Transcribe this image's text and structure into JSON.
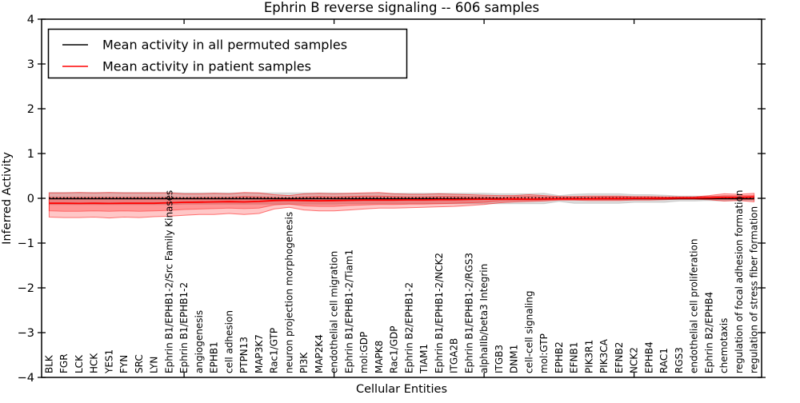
{
  "title": "Ephrin B reverse signaling -- 606 samples",
  "axes": {
    "xlabel": "Cellular Entities",
    "ylabel": "Inferred Activity",
    "yticks": [
      4,
      3,
      2,
      1,
      0,
      -1,
      -2,
      -3,
      -4
    ],
    "ylim": [
      -4,
      4
    ]
  },
  "legend": [
    {
      "label": "Mean activity in all permuted samples",
      "color": "#000000"
    },
    {
      "label": "Mean activity in patient samples",
      "color": "#ff0000"
    }
  ],
  "colors": {
    "permuted_line": "#000000",
    "patient_line": "#ff0000",
    "patient_band": "#ff0000",
    "permuted_band": "#b0b0b0",
    "frame": "#000000"
  },
  "chart_data": {
    "type": "line",
    "title": "Ephrin B reverse signaling -- 606 samples",
    "xlabel": "Cellular Entities",
    "ylabel": "Inferred Activity",
    "ylim": [
      -4,
      4
    ],
    "grid": false,
    "legend_position": "upper left",
    "x_major_tick_indices": [
      9,
      19,
      29,
      39
    ],
    "categories": [
      "BLK",
      "FGR",
      "LCK",
      "HCK",
      "YES1",
      "FYN",
      "SRC",
      "LYN",
      "Ephrin B1/EPHB1-2/Src Family Kinases",
      "Ephrin B1/EPHB1-2",
      "angiogenesis",
      "EPHB1",
      "cell adhesion",
      "PTPN13",
      "MAP3K7",
      "Rac1/GTP",
      "neuron projection morphogenesis",
      "PI3K",
      "MAP2K4",
      "endothelial cell migration",
      "Ephrin B1/EPHB1-2/Tiam1",
      "mol:GDP",
      "MAPK8",
      "Rac1/GDP",
      "Ephrin B2/EPHB1-2",
      "TIAM1",
      "Ephrin B1/EPHB1-2/NCK2",
      "ITGA2B",
      "Ephrin B1/EPHB1-2/RGS3",
      "alphaIIb/beta3 Integrin",
      "ITGB3",
      "DNM1",
      "cell-cell signaling",
      "mol:GTP",
      "EPHB2",
      "EFNB1",
      "PIK3R1",
      "PIK3CA",
      "EFNB2",
      "NCK2",
      "EPHB4",
      "RAC1",
      "RGS3",
      "endothelial cell proliferation",
      "Ephrin B2/EPHB4",
      "chemotaxis",
      "regulation of focal adhesion formation",
      "regulation of stress fiber formation"
    ],
    "series": [
      {
        "name": "Mean activity in all permuted samples",
        "color": "#000000",
        "style": "solid",
        "width": 1.4,
        "values": [
          -0.01,
          -0.01,
          -0.01,
          -0.01,
          -0.01,
          -0.01,
          -0.01,
          -0.01,
          -0.01,
          -0.01,
          -0.01,
          -0.01,
          -0.01,
          -0.01,
          -0.01,
          -0.01,
          -0.01,
          -0.01,
          -0.01,
          -0.01,
          -0.01,
          -0.01,
          -0.01,
          -0.01,
          -0.01,
          -0.01,
          -0.01,
          -0.01,
          -0.01,
          -0.01,
          -0.01,
          -0.02,
          -0.02,
          -0.02,
          -0.01,
          -0.01,
          -0.01,
          -0.01,
          -0.01,
          -0.01,
          -0.01,
          -0.01,
          -0.01,
          -0.01,
          -0.01,
          -0.01,
          -0.01,
          -0.01
        ]
      },
      {
        "name": "dotted reference line",
        "color": "#000000",
        "style": "dotted",
        "width": 1.6,
        "values": [
          0.01,
          0.01,
          0.01,
          0.01,
          0.01,
          0.01,
          0.01,
          0.01,
          0.01,
          0.01,
          0.01,
          0.01,
          0.01,
          0.01,
          0.01,
          0.01,
          0.01,
          0.01,
          0.01,
          0.01,
          0.01,
          0.01,
          0.01,
          0.01,
          0.01,
          0.01,
          0.01,
          0.01,
          0.01,
          0.01,
          0.01,
          0.01,
          0.01,
          0.01,
          0.01,
          0.01,
          0.01,
          0.01,
          0.01,
          0.01,
          0.01,
          0.01,
          0.01,
          0.01,
          0.01,
          0.01,
          0.01,
          0.01
        ]
      },
      {
        "name": "Mean activity in patient samples",
        "color": "#ff0000",
        "style": "solid",
        "width": 1.8,
        "values": [
          -0.11,
          -0.11,
          -0.115,
          -0.11,
          -0.115,
          -0.11,
          -0.11,
          -0.11,
          -0.1,
          -0.09,
          -0.085,
          -0.08,
          -0.075,
          -0.08,
          -0.07,
          -0.05,
          -0.045,
          -0.05,
          -0.055,
          -0.05,
          -0.045,
          -0.04,
          -0.04,
          -0.04,
          -0.035,
          -0.035,
          -0.03,
          -0.03,
          -0.025,
          -0.02,
          -0.02,
          -0.015,
          -0.02,
          -0.015,
          -0.01,
          -0.01,
          -0.01,
          -0.005,
          -0.005,
          0,
          0,
          0,
          0.005,
          0.005,
          0.01,
          0.02,
          0.02,
          0.03
        ]
      }
    ],
    "bands": [
      {
        "name": "permuted std band",
        "color": "#b0b0b0",
        "opacity": 0.45,
        "stroke_opacity": 0.55,
        "upper": [
          0.13,
          0.13,
          0.13,
          0.13,
          0.13,
          0.13,
          0.13,
          0.13,
          0.13,
          0.12,
          0.12,
          0.12,
          0.12,
          0.12,
          0.12,
          0.12,
          0.12,
          0.12,
          0.12,
          0.12,
          0.11,
          0.11,
          0.11,
          0.11,
          0.11,
          0.11,
          0.11,
          0.11,
          0.11,
          0.11,
          0.1,
          0.1,
          0.1,
          0.11,
          0.06,
          0.09,
          0.1,
          0.1,
          0.1,
          0.08,
          0.08,
          0.07,
          0.05,
          0.05,
          0.04,
          0.05,
          0.04,
          0.04
        ],
        "lower": [
          -0.14,
          -0.14,
          -0.14,
          -0.14,
          -0.14,
          -0.14,
          -0.14,
          -0.14,
          -0.14,
          -0.13,
          -0.13,
          -0.13,
          -0.13,
          -0.13,
          -0.13,
          -0.13,
          -0.13,
          -0.13,
          -0.13,
          -0.13,
          -0.12,
          -0.12,
          -0.12,
          -0.12,
          -0.12,
          -0.12,
          -0.12,
          -0.12,
          -0.12,
          -0.12,
          -0.12,
          -0.12,
          -0.12,
          -0.12,
          -0.07,
          -0.11,
          -0.11,
          -0.11,
          -0.11,
          -0.09,
          -0.09,
          -0.09,
          -0.06,
          -0.06,
          -0.05,
          -0.06,
          -0.05,
          -0.05
        ]
      },
      {
        "name": "patient std band outer",
        "color": "#ff0000",
        "opacity": 0.22,
        "stroke_opacity": 0.5,
        "upper": [
          0.12,
          0.12,
          0.13,
          0.12,
          0.13,
          0.12,
          0.12,
          0.12,
          0.12,
          0.1,
          0.1,
          0.11,
          0.1,
          0.13,
          0.12,
          0.08,
          0.06,
          0.1,
          0.11,
          0.1,
          0.11,
          0.12,
          0.13,
          0.1,
          0.09,
          0.09,
          0.1,
          0.09,
          0.08,
          0.07,
          0.06,
          0.06,
          0.08,
          0.06,
          0.04,
          0.04,
          0.05,
          0.05,
          0.05,
          0.04,
          0.04,
          0.03,
          0.03,
          0.03,
          0.06,
          0.1,
          0.09,
          0.11
        ],
        "lower": [
          -0.42,
          -0.43,
          -0.43,
          -0.42,
          -0.44,
          -0.42,
          -0.43,
          -0.41,
          -0.4,
          -0.38,
          -0.36,
          -0.36,
          -0.34,
          -0.36,
          -0.34,
          -0.24,
          -0.2,
          -0.26,
          -0.28,
          -0.28,
          -0.26,
          -0.24,
          -0.22,
          -0.22,
          -0.21,
          -0.2,
          -0.19,
          -0.18,
          -0.16,
          -0.14,
          -0.1,
          -0.08,
          -0.07,
          -0.06,
          -0.04,
          -0.04,
          -0.05,
          -0.05,
          -0.05,
          -0.04,
          -0.04,
          -0.03,
          -0.02,
          -0.02,
          -0.03,
          -0.06,
          -0.05,
          -0.08
        ]
      },
      {
        "name": "patient std band inner",
        "color": "#ff0000",
        "opacity": 0.25,
        "stroke_opacity": 0.4,
        "upper": [
          0.02,
          0.02,
          0.02,
          0.02,
          0.02,
          0.02,
          0.02,
          0.02,
          0.02,
          0.01,
          0.02,
          0.02,
          0.02,
          0.04,
          0.03,
          0.02,
          0.01,
          0.03,
          0.04,
          0.03,
          0.04,
          0.05,
          0.05,
          0.04,
          0.03,
          0.03,
          0.04,
          0.04,
          0.03,
          0.03,
          0.02,
          0.03,
          0.04,
          0.03,
          0.02,
          0.02,
          0.02,
          0.03,
          0.03,
          0.02,
          0.02,
          0.02,
          0.02,
          0.02,
          0.04,
          0.06,
          0.06,
          0.07
        ],
        "lower": [
          -0.28,
          -0.29,
          -0.29,
          -0.28,
          -0.29,
          -0.28,
          -0.29,
          -0.28,
          -0.27,
          -0.25,
          -0.24,
          -0.23,
          -0.22,
          -0.23,
          -0.22,
          -0.15,
          -0.13,
          -0.17,
          -0.18,
          -0.18,
          -0.16,
          -0.15,
          -0.14,
          -0.14,
          -0.13,
          -0.13,
          -0.12,
          -0.11,
          -0.1,
          -0.09,
          -0.06,
          -0.05,
          -0.05,
          -0.04,
          -0.03,
          -0.03,
          -0.03,
          -0.03,
          -0.03,
          -0.02,
          -0.02,
          -0.02,
          -0.01,
          -0.01,
          -0.01,
          -0.02,
          -0.02,
          -0.03
        ]
      }
    ]
  }
}
